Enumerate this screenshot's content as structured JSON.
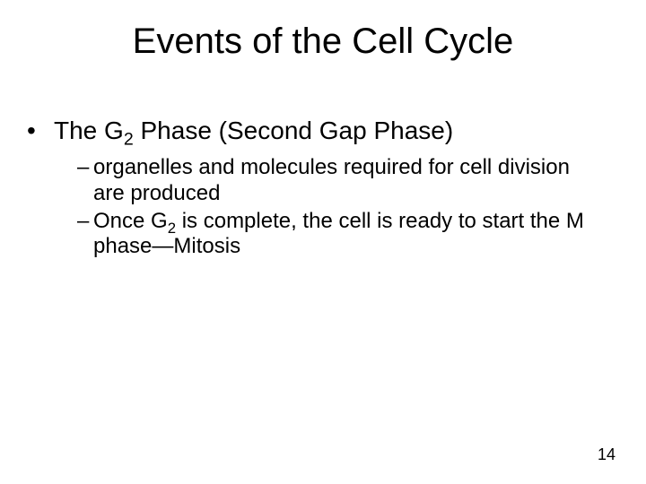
{
  "title": "Events of the Cell Cycle",
  "l1_pre": "The G",
  "l1_sub": "2",
  "l1_post": " Phase  (Second Gap Phase)",
  "sub1": "organelles and molecules required for cell division are produced",
  "sub2_pre": "Once G",
  "sub2_sub": "2",
  "sub2_post": " is complete, the cell is ready to start the M phase—Mitosis",
  "page_number": "14",
  "bullet_char": "•",
  "dash_char": "–"
}
